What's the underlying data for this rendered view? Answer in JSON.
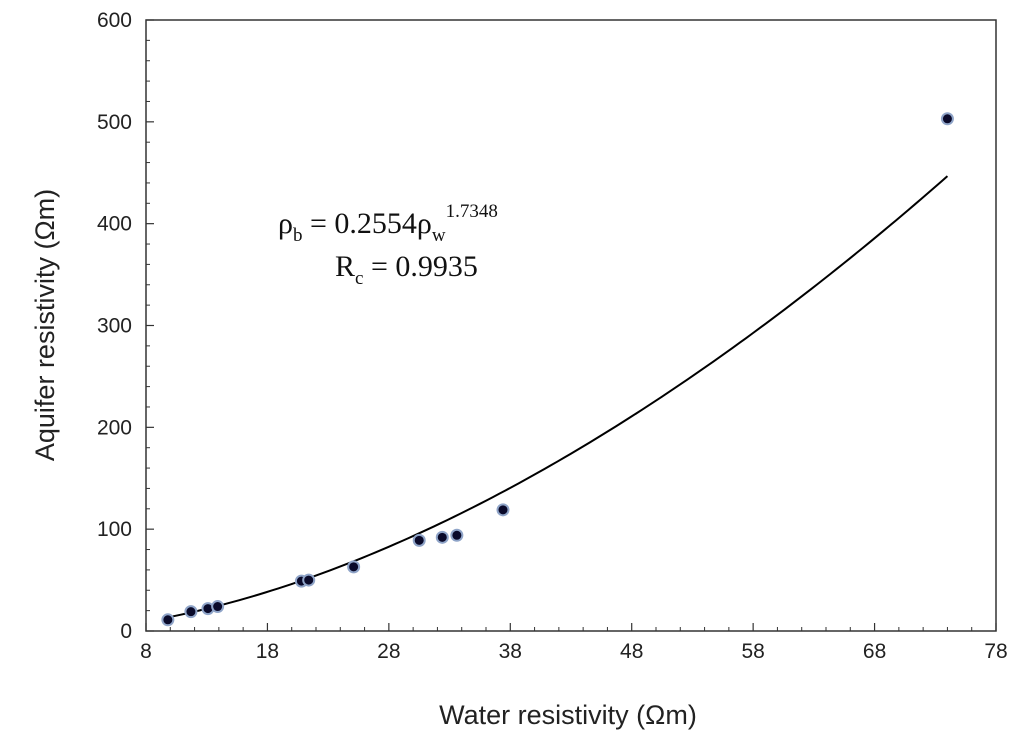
{
  "chart_data": {
    "type": "scatter",
    "title": "",
    "xlabel": "Water resistivity (Ωm)",
    "ylabel": "Aquifer resistivity (Ωm)",
    "xlim": [
      8,
      78
    ],
    "ylim": [
      0,
      600
    ],
    "xticks": [
      8,
      18,
      28,
      38,
      48,
      58,
      68,
      78
    ],
    "yticks": [
      0,
      100,
      200,
      300,
      400,
      500,
      600
    ],
    "grid": false,
    "legend": "none",
    "series": [
      {
        "points": [
          {
            "x": 9.8,
            "y": 11
          },
          {
            "x": 11.7,
            "y": 19
          },
          {
            "x": 13.1,
            "y": 22
          },
          {
            "x": 13.9,
            "y": 24
          },
          {
            "x": 20.8,
            "y": 49
          },
          {
            "x": 21.4,
            "y": 50
          },
          {
            "x": 25.1,
            "y": 63
          },
          {
            "x": 30.5,
            "y": 89
          },
          {
            "x": 32.4,
            "y": 92
          },
          {
            "x": 33.6,
            "y": 94
          },
          {
            "x": 37.4,
            "y": 119
          },
          {
            "x": 74.0,
            "y": 503
          }
        ],
        "marker_color": "#0a0a2a",
        "marker_edge": "#8fa4c8"
      }
    ],
    "fit": {
      "type": "power",
      "coefficient": 0.2554,
      "exponent": 1.7348,
      "x_range": [
        9.8,
        74.0
      ],
      "color": "#000000"
    },
    "annotations": {
      "equation": {
        "lhs_base": "ρ",
        "lhs_sub": "b",
        "middle": " = 0.2554ρ",
        "rhs_sub": "w",
        "rhs_sup": "1.7348"
      },
      "rc": {
        "base": "R",
        "sub": "c",
        "rest": " = 0.9935"
      }
    }
  }
}
